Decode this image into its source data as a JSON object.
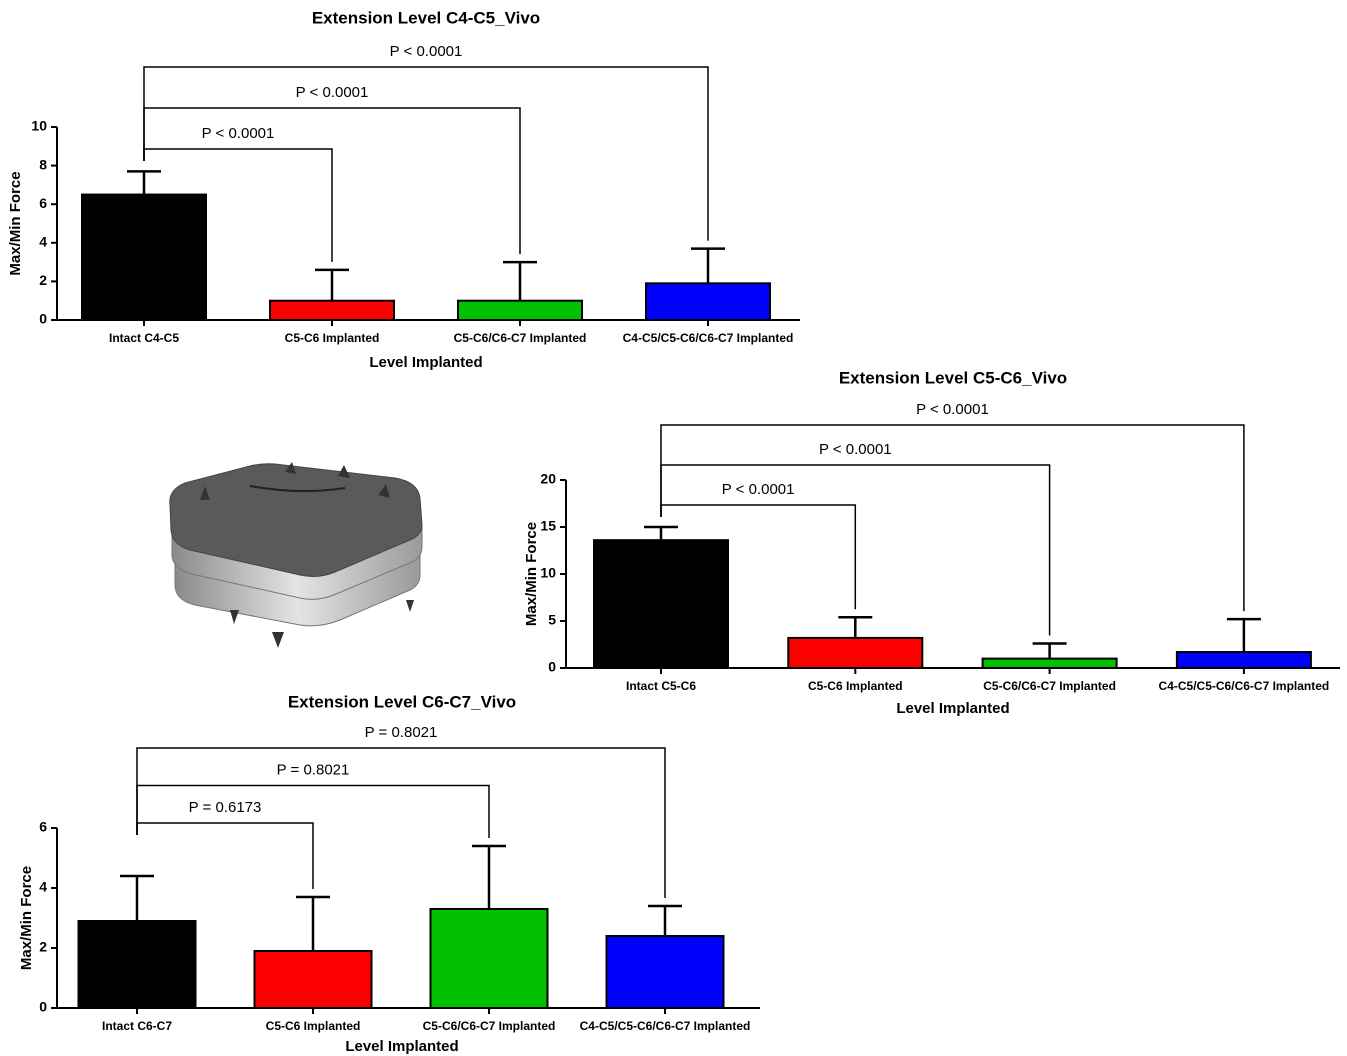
{
  "chart_data": [
    {
      "type": "bar",
      "title": "Extension Level C4-C5_Vivo",
      "x_label": "Level Implanted",
      "y_label": "Max/Min Force",
      "categories": [
        "Intact C4-C5",
        "C5-C6 Implanted",
        "C5-C6/C6-C7 Implanted",
        "C4-C5/C5-C6/C6-C7 Implanted"
      ],
      "values": [
        6.5,
        1.0,
        1.0,
        1.9
      ],
      "errors": [
        1.2,
        1.6,
        2.0,
        1.8
      ],
      "colors": [
        "#000000",
        "#ff0000",
        "#00c000",
        "#0000ff"
      ],
      "ylim": [
        0,
        10
      ],
      "yticks": [
        0,
        2,
        4,
        6,
        8,
        10
      ],
      "annotations": [
        "P < 0.0001",
        "P < 0.0001",
        "P < 0.0001"
      ]
    },
    {
      "type": "bar",
      "title": "Extension Level C5-C6_Vivo",
      "x_label": "Level Implanted",
      "y_label": "Max/Min Force",
      "categories": [
        "Intact C5-C6",
        "C5-C6 Implanted",
        "C5-C6/C6-C7 Implanted",
        "C4-C5/C5-C6/C6-C7 Implanted"
      ],
      "values": [
        13.6,
        3.2,
        1.0,
        1.7
      ],
      "errors": [
        1.4,
        2.2,
        1.6,
        3.5
      ],
      "colors": [
        "#000000",
        "#ff0000",
        "#00c000",
        "#0000ff"
      ],
      "ylim": [
        0,
        20
      ],
      "yticks": [
        0,
        5,
        10,
        15,
        20
      ],
      "annotations": [
        "P < 0.0001",
        "P < 0.0001",
        "P < 0.0001"
      ]
    },
    {
      "type": "bar",
      "title": "Extension Level C6-C7_Vivo",
      "x_label": "Level Implanted",
      "y_label": "Max/Min Force",
      "categories": [
        "Intact C6-C7",
        "C5-C6 Implanted",
        "C5-C6/C6-C7 Implanted",
        "C4-C5/C5-C6/C6-C7 Implanted"
      ],
      "values": [
        2.9,
        1.9,
        3.3,
        2.4
      ],
      "errors": [
        1.5,
        1.8,
        2.1,
        1.0
      ],
      "colors": [
        "#000000",
        "#ff0000",
        "#00c000",
        "#0000ff"
      ],
      "ylim": [
        0,
        6
      ],
      "yticks": [
        0,
        2,
        4,
        6
      ],
      "annotations": [
        "P = 0.6173",
        "P = 0.8021",
        "P = 0.8021"
      ]
    }
  ]
}
